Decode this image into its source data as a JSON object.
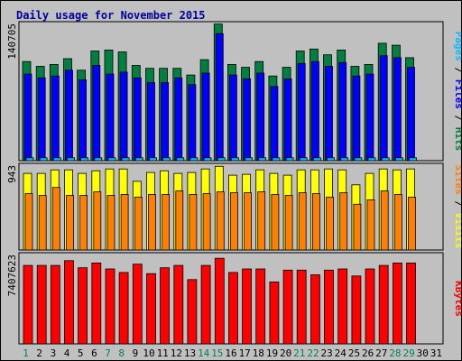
{
  "chart_data": {
    "type": "bar",
    "title": "Daily usage for November 2015",
    "categories": [
      "1",
      "2",
      "3",
      "4",
      "5",
      "6",
      "7",
      "8",
      "9",
      "10",
      "11",
      "12",
      "13",
      "14",
      "15",
      "16",
      "17",
      "18",
      "19",
      "20",
      "21",
      "22",
      "23",
      "24",
      "25",
      "26",
      "27",
      "28",
      "29",
      "30",
      "31"
    ],
    "weekend_days": [
      "1",
      "7",
      "8",
      "14",
      "15",
      "21",
      "22",
      "28",
      "29"
    ],
    "panels": [
      {
        "id": "top",
        "ymax_label": "140705",
        "ylim": [
          0,
          140705
        ],
        "legend": [
          "Pages",
          "Files",
          "Hits"
        ],
        "series": [
          {
            "name": "Hits",
            "color": "#008040",
            "values": [
              103000,
              98000,
              100000,
              106000,
              94000,
              114000,
              115000,
              113000,
              99000,
              96000,
              96000,
              96000,
              89000,
              105000,
              142000,
              100000,
              97000,
              103000,
              88000,
              97000,
              114000,
              116000,
              110000,
              115000,
              98000,
              100000,
              122000,
              120000,
              107000,
              0,
              0
            ]
          },
          {
            "name": "Files",
            "color": "#0000ff",
            "values": [
              90000,
              86000,
              88000,
              94000,
              84000,
              99000,
              90000,
              92000,
              86000,
              81000,
              81000,
              86000,
              79000,
              91000,
              132000,
              89000,
              85000,
              91000,
              77000,
              85000,
              101000,
              103000,
              98000,
              102000,
              88000,
              90000,
              109000,
              107000,
              97000,
              0,
              0
            ]
          },
          {
            "name": "Pages",
            "color": "#00c0ff",
            "values": [
              3000,
              3000,
              3000,
              3000,
              3000,
              3000,
              3000,
              3000,
              3000,
              3000,
              3000,
              3000,
              3000,
              3000,
              3000,
              3000,
              3000,
              3000,
              3000,
              3000,
              3000,
              3000,
              3000,
              3000,
              3000,
              3000,
              3000,
              3000,
              3000,
              0,
              0
            ]
          }
        ]
      },
      {
        "id": "middle",
        "ymax_label": "943",
        "ylim": [
          0,
          943
        ],
        "legend": [
          "Sites",
          "Visits"
        ],
        "series": [
          {
            "name": "Visits",
            "color": "#ffff00",
            "values": [
              870,
              870,
              910,
              910,
              870,
              900,
              920,
              920,
              780,
              880,
              900,
              870,
              880,
              920,
              950,
              850,
              860,
              910,
              870,
              850,
              910,
              910,
              920,
              910,
              740,
              870,
              920,
              910,
              920,
              0,
              0
            ]
          },
          {
            "name": "Sites",
            "color": "#ff8000",
            "values": [
              640,
              620,
              710,
              620,
              620,
              660,
              620,
              630,
              600,
              630,
              630,
              670,
              630,
              640,
              660,
              650,
              650,
              660,
              630,
              620,
              650,
              640,
              600,
              650,
              520,
              570,
              670,
              630,
              600,
              0,
              0
            ]
          }
        ]
      },
      {
        "id": "bottom",
        "ymax_label": "7407623",
        "ylim": [
          0,
          7407623
        ],
        "legend": [
          "KBytes"
        ],
        "series": [
          {
            "name": "KBytes",
            "color": "#ff0000",
            "values": [
              6640000,
              6640000,
              6640000,
              7040000,
              6440000,
              6840000,
              6340000,
              6040000,
              6740000,
              5940000,
              6440000,
              6640000,
              5440000,
              6640000,
              7240000,
              6040000,
              6340000,
              6340000,
              5240000,
              6240000,
              6240000,
              5840000,
              6240000,
              6340000,
              5740000,
              6340000,
              6640000,
              6840000,
              6840000,
              0,
              0
            ]
          }
        ]
      }
    ]
  }
}
